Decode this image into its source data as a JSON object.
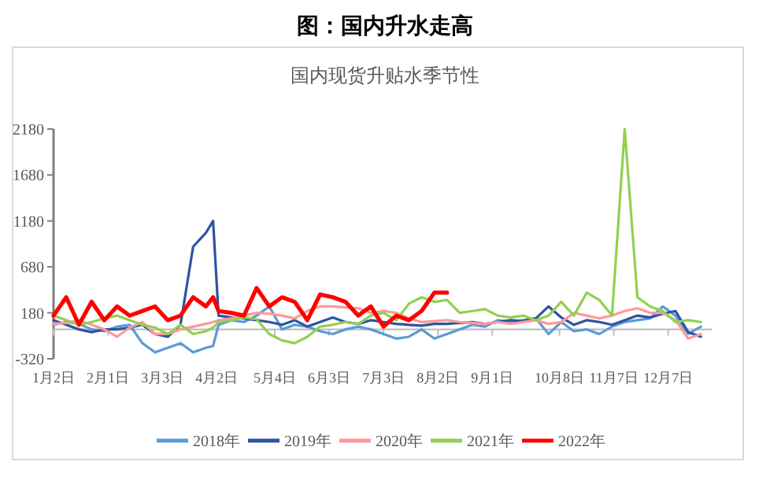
{
  "chart_data": {
    "type": "line",
    "title": "图：国内升水走高",
    "subtitle": "国内现货升贴水季节性",
    "x": [
      "--01-02",
      "--01-09",
      "--01-16",
      "--01-23",
      "--01-30",
      "--02-06",
      "--02-13",
      "--02-20",
      "--02-27",
      "--03-06",
      "--03-13",
      "--03-20",
      "--03-27",
      "--03-31",
      "--04-03",
      "--04-10",
      "--04-17",
      "--04-24",
      "--05-01",
      "--05-08",
      "--05-15",
      "--05-22",
      "--05-29",
      "--06-05",
      "--06-12",
      "--06-19",
      "--06-26",
      "--07-03",
      "--07-10",
      "--07-17",
      "--07-24",
      "--07-31",
      "--08-07",
      "--08-14",
      "--08-21",
      "--08-28",
      "--09-04",
      "--09-11",
      "--09-18",
      "--09-25",
      "--10-02",
      "--10-09",
      "--10-16",
      "--10-23",
      "--10-30",
      "--11-06",
      "--11-13",
      "--11-20",
      "--11-27",
      "--12-04",
      "--12-11",
      "--12-18",
      "--12-25"
    ],
    "series": [
      {
        "name": "2018年",
        "color": "#5b9bd5",
        "values": [
          50,
          80,
          60,
          0,
          -20,
          30,
          50,
          -150,
          -250,
          -200,
          -150,
          -250,
          -200,
          -180,
          50,
          100,
          80,
          150,
          250,
          0,
          50,
          30,
          -20,
          -50,
          0,
          30,
          0,
          -50,
          -100,
          -80,
          0,
          -100,
          -50,
          0,
          50,
          30,
          100,
          80,
          100,
          120,
          -50,
          80,
          -20,
          0,
          -50,
          30,
          80,
          100,
          120,
          250,
          150,
          -50,
          30
        ]
      },
      {
        "name": "2019年",
        "color": "#2e54a0",
        "values": [
          100,
          50,
          0,
          -30,
          0,
          0,
          20,
          50,
          -50,
          -80,
          50,
          900,
          1050,
          1180,
          150,
          130,
          120,
          100,
          80,
          50,
          100,
          30,
          80,
          130,
          80,
          60,
          100,
          80,
          60,
          50,
          40,
          60,
          60,
          70,
          80,
          60,
          80,
          100,
          90,
          120,
          250,
          130,
          50,
          100,
          80,
          50,
          100,
          150,
          130,
          170,
          200,
          -30,
          -80
        ]
      },
      {
        "name": "2020年",
        "color": "#ff9999",
        "values": [
          60,
          70,
          100,
          50,
          0,
          -80,
          20,
          80,
          -50,
          -50,
          0,
          30,
          60,
          80,
          100,
          120,
          150,
          180,
          170,
          150,
          120,
          200,
          250,
          250,
          240,
          230,
          180,
          200,
          180,
          120,
          80,
          90,
          100,
          80,
          70,
          60,
          80,
          60,
          80,
          100,
          60,
          80,
          180,
          150,
          120,
          150,
          200,
          230,
          180,
          180,
          100,
          -100,
          -50
        ]
      },
      {
        "name": "2021年",
        "color": "#92d050",
        "values": [
          150,
          100,
          50,
          80,
          120,
          150,
          100,
          50,
          20,
          -50,
          50,
          -50,
          -20,
          20,
          80,
          100,
          130,
          110,
          -50,
          -120,
          -150,
          -80,
          30,
          50,
          80,
          60,
          150,
          180,
          100,
          280,
          350,
          300,
          320,
          180,
          200,
          220,
          150,
          130,
          150,
          100,
          150,
          300,
          150,
          400,
          320,
          150,
          2180,
          350,
          250,
          200,
          80,
          100,
          80
        ]
      },
      {
        "name": "2022年",
        "color": "#ff0000",
        "values": [
          150,
          350,
          50,
          300,
          100,
          250,
          150,
          200,
          250,
          100,
          150,
          350,
          250,
          350,
          200,
          180,
          150,
          450,
          250,
          350,
          300,
          100,
          380,
          350,
          300,
          150,
          250,
          30,
          150,
          100,
          200,
          400,
          400,
          null,
          null,
          null,
          null,
          null,
          null,
          null,
          null,
          null,
          null,
          null,
          null,
          null,
          null,
          null,
          null,
          null,
          null,
          null,
          null
        ]
      }
    ],
    "xlim": [
      "--01-02",
      "--12-31"
    ],
    "xticks": [
      {
        "value": "--01-02",
        "label": "1月2日"
      },
      {
        "value": "--02-01",
        "label": "2月1日"
      },
      {
        "value": "--03-03",
        "label": "3月3日"
      },
      {
        "value": "--04-02",
        "label": "4月2日"
      },
      {
        "value": "--05-04",
        "label": "5月4日"
      },
      {
        "value": "--06-03",
        "label": "6月3日"
      },
      {
        "value": "--07-03",
        "label": "7月3日"
      },
      {
        "value": "--08-02",
        "label": "8月2日"
      },
      {
        "value": "--09-01",
        "label": "9月1日"
      },
      {
        "value": "--10-08",
        "label": "10月8日"
      },
      {
        "value": "--11-07",
        "label": "11月7日"
      },
      {
        "value": "--12-07",
        "label": "12月7日"
      }
    ],
    "ylim": [
      -320,
      2180
    ],
    "yticks": [
      -320,
      180,
      680,
      1180,
      1680,
      2180
    ],
    "grid": false,
    "legend": "bottom",
    "line_style": "solid"
  }
}
